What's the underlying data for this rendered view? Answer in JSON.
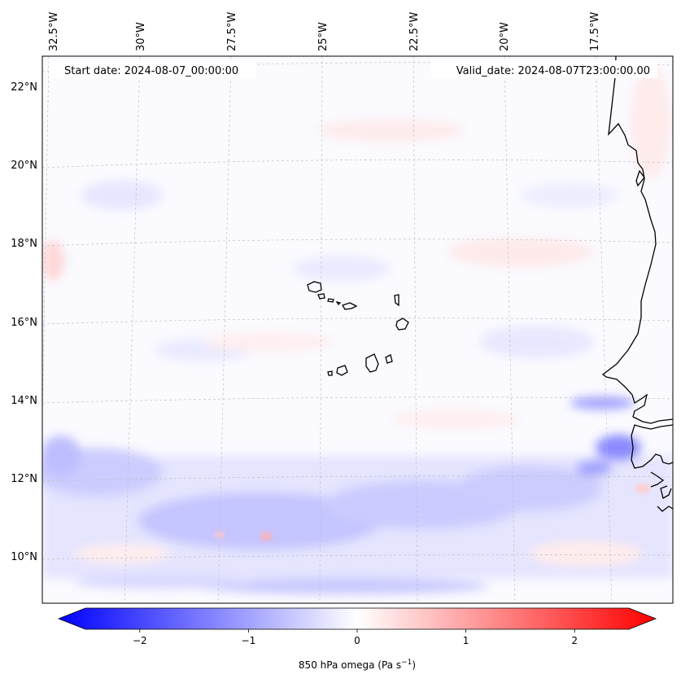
{
  "header": {
    "start_date": "Start date: 2024-08-07_00:00:00",
    "valid_date": "Valid_date: 2024-08-07T23:00:00.00"
  },
  "longitude_labels": [
    "32.5°W",
    "30°W",
    "27.5°W",
    "25°W",
    "22.5°W",
    "20°W",
    "17.5°W"
  ],
  "latitude_labels": [
    "22°N",
    "20°N",
    "18°N",
    "16°N",
    "14°N",
    "12°N",
    "10°N"
  ],
  "colorbar": {
    "ticks": [
      "−2",
      "−1",
      "0",
      "1",
      "2"
    ],
    "tick_values": [
      -2,
      -1,
      0,
      1,
      2
    ],
    "range": [
      -2.5,
      2.5
    ],
    "label": "850 hPa omega (Pa s",
    "label_sup": "−1",
    "label_end": ")",
    "colors": {
      "negative": "#0000ff",
      "zero": "#ffffff",
      "positive": "#ff0000"
    }
  },
  "map": {
    "extent_lon": [
      -33,
      -15.5
    ],
    "extent_lat": [
      9,
      22.5
    ],
    "grid": "dashed",
    "coastline_color": "#000000"
  }
}
